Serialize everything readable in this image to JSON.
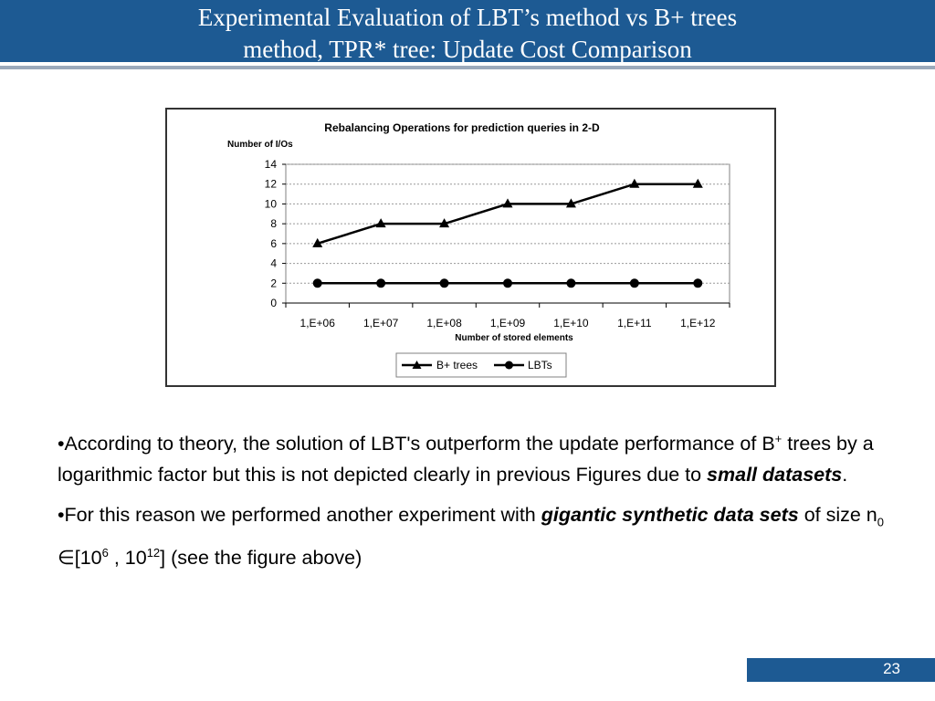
{
  "slide": {
    "title_line1": "Experimental Evaluation of LBT’s method vs B+ trees",
    "title_line2": "method, TPR* tree: Update Cost Comparison",
    "page_number": "23"
  },
  "body": {
    "p1_pre": "•According to theory, the solution of LBT's outperform the update performance of B",
    "p1_sup": "+",
    "p1_mid": " trees by a logarithmic factor but this is not depicted clearly in previous Figures due to ",
    "p1_em": "small datasets",
    "p1_end": ".",
    "p2_pre": "•For this reason we performed another experiment with ",
    "p2_em": "gigantic synthetic data sets",
    "p2_mid": " of size n",
    "p2_sub": "0",
    "p2_elem": " ∈[10",
    "p2_sup1": "6",
    "p2_mid2": " , 10",
    "p2_sup2": "12",
    "p2_end": "] (see the figure above)"
  },
  "chart_data": {
    "type": "line",
    "title": "Rebalancing Operations for prediction queries in 2-D",
    "ylabel": "Number of I/Os",
    "xlabel": "Number of stored elements",
    "categories": [
      "1,E+06",
      "1,E+07",
      "1,E+08",
      "1,E+09",
      "1,E+10",
      "1,E+11",
      "1,E+12"
    ],
    "yticks": [
      "0",
      "2",
      "4",
      "6",
      "8",
      "10",
      "12",
      "14"
    ],
    "ylim": [
      0,
      14
    ],
    "grid": "horizontal-dashed",
    "legend_position": "bottom",
    "series": [
      {
        "name": "B+ trees",
        "marker": "triangle",
        "values": [
          6,
          8,
          8,
          10,
          10,
          12,
          12
        ]
      },
      {
        "name": "LBTs",
        "marker": "circle",
        "values": [
          2,
          2,
          2,
          2,
          2,
          2,
          2
        ]
      }
    ],
    "colors": {
      "line": "#000000",
      "grid": "#999999",
      "plot_border": "#808080"
    }
  }
}
